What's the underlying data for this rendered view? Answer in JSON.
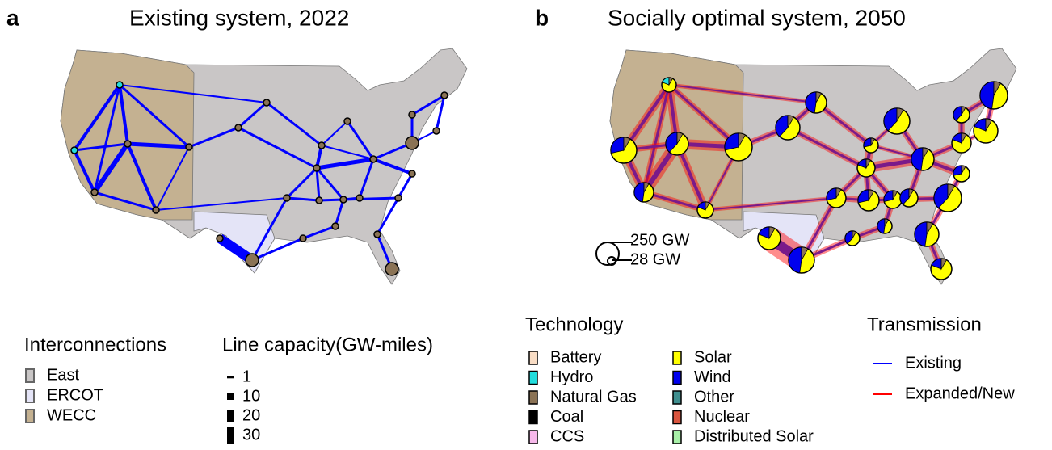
{
  "panels": [
    {
      "letter": "a",
      "title": "Existing system, 2022"
    },
    {
      "letter": "b",
      "title": "Socially optimal system, 2050"
    }
  ],
  "size_legend": {
    "labels": [
      "250 GW",
      "28 GW"
    ]
  },
  "interconnections": {
    "title": "Interconnections",
    "items": [
      {
        "name": "East",
        "color": "#c9c6c6"
      },
      {
        "name": "ERCOT",
        "color": "#e4e4f7"
      },
      {
        "name": "WECC",
        "color": "#c4b191"
      }
    ]
  },
  "line_capacity": {
    "title": "Line capacity(GW-miles)",
    "values": [
      1,
      10,
      20,
      30
    ]
  },
  "technology": {
    "title": "Technology",
    "items": [
      {
        "name": "Battery",
        "color": "#f8dcc4"
      },
      {
        "name": "Hydro",
        "color": "#22dddd"
      },
      {
        "name": "Natural Gas",
        "color": "#8b7355"
      },
      {
        "name": "Coal",
        "color": "#000000"
      },
      {
        "name": "CCS",
        "color": "#f6b8ea"
      },
      {
        "name": "Solar",
        "color": "#ffff00"
      },
      {
        "name": "Wind",
        "color": "#0000ee"
      },
      {
        "name": "Other",
        "color": "#3f8f8f"
      },
      {
        "name": "Nuclear",
        "color": "#d9553f"
      },
      {
        "name": "Distributed Solar",
        "color": "#a8f0a8"
      }
    ]
  },
  "transmission": {
    "title": "Transmission",
    "items": [
      {
        "name": "Existing",
        "color": "#0000ff"
      },
      {
        "name": "Expanded/New",
        "color": "#ff0000"
      }
    ]
  }
}
